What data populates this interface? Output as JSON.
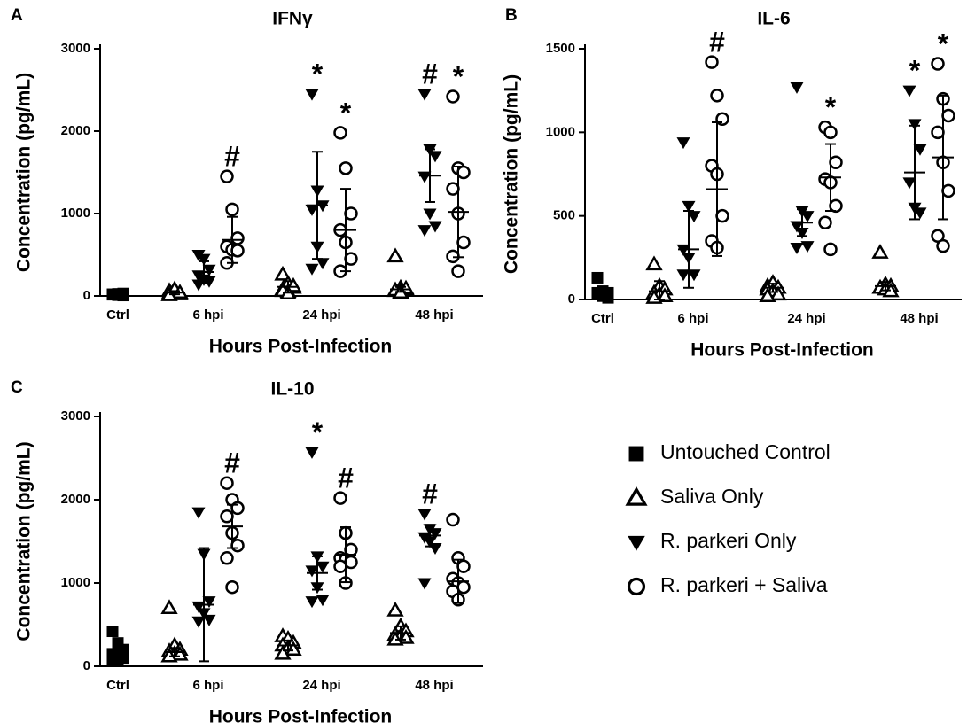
{
  "chart_data": [
    {
      "type": "scatter",
      "panel": "A",
      "title": "IFNγ",
      "categories": [
        "Ctrl",
        "6 hpi",
        "24 hpi",
        "48 hpi"
      ],
      "xlabel": "Hours Post-Infection",
      "ylabel": "Concentration (pg/mL)",
      "ylim": [
        0,
        3000
      ],
      "yticks": [
        0,
        1000,
        2000,
        3000
      ],
      "series": [
        {
          "marker": "square",
          "color": "#000000",
          "values": [
            [
              20,
              10,
              30,
              15,
              25,
              5,
              20,
              10
            ],
            null,
            null,
            null
          ],
          "mean": [
            20,
            null,
            null,
            null
          ],
          "sd": [
            10,
            null,
            null,
            null
          ],
          "annotations": [
            null,
            null,
            null,
            null
          ]
        },
        {
          "marker": "triangle-open",
          "color": "#000000",
          "values": [
            null,
            [
              30,
              50,
              20,
              60,
              80,
              40,
              10
            ],
            [
              260,
              150,
              100,
              80,
              50,
              120,
              60,
              30
            ],
            [
              480,
              100,
              80,
              60,
              50,
              90,
              70,
              40
            ]
          ],
          "mean": [
            null,
            40,
            110,
            80
          ],
          "sd": [
            null,
            20,
            70,
            30
          ],
          "annotations": [
            null,
            null,
            null,
            null
          ]
        },
        {
          "marker": "triangle-down",
          "color": "#000000",
          "values": [
            null,
            [
              500,
              450,
              320,
              250,
              200,
              180,
              140
            ],
            [
              2450,
              1280,
              1100,
              1050,
              600,
              400,
              330
            ],
            [
              2450,
              1780,
              1700,
              1450,
              1000,
              850,
              800
            ]
          ],
          "mean": [
            null,
            290,
            1100,
            1460
          ],
          "sd": [
            null,
            130,
            650,
            320
          ],
          "annotations": [
            null,
            null,
            "*",
            "#"
          ]
        },
        {
          "marker": "circle-open",
          "color": "#000000",
          "values": [
            null,
            [
              1450,
              1050,
              700,
              600,
              560,
              550,
              400
            ],
            [
              1980,
              1550,
              1000,
              800,
              650,
              450,
              300
            ],
            [
              2420,
              1550,
              1500,
              1300,
              1000,
              650,
              480,
              300
            ]
          ],
          "mean": [
            null,
            680,
            800,
            1020
          ],
          "sd": [
            null,
            280,
            500,
            550
          ],
          "annotations": [
            null,
            "#",
            "*",
            "*"
          ]
        }
      ]
    },
    {
      "type": "scatter",
      "panel": "B",
      "title": "IL-6",
      "categories": [
        "Ctrl",
        "6 hpi",
        "24 hpi",
        "48 hpi"
      ],
      "xlabel": "Hours Post-Infection",
      "ylabel": "Concentration (pg/mL)",
      "ylim": [
        0,
        1500
      ],
      "yticks": [
        0,
        500,
        1000,
        1500
      ],
      "series": [
        {
          "marker": "square",
          "color": "#000000",
          "values": [
            [
              130,
              50,
              40,
              30,
              20,
              10,
              40,
              30
            ],
            null,
            null,
            null
          ],
          "mean": [
            40,
            null,
            null,
            null
          ],
          "sd": [
            35,
            null,
            null,
            null
          ],
          "annotations": [
            null,
            null,
            null,
            null
          ]
        },
        {
          "marker": "triangle-open",
          "color": "#000000",
          "values": [
            null,
            [
              210,
              80,
              60,
              40,
              30,
              20,
              10
            ],
            [
              80,
              100,
              70,
              60,
              50,
              30,
              20
            ],
            [
              280,
              90,
              80,
              70,
              60,
              50
            ]
          ],
          "mean": [
            null,
            50,
            70,
            80
          ],
          "sd": [
            null,
            60,
            25,
            25
          ],
          "annotations": [
            null,
            null,
            null,
            null
          ]
        },
        {
          "marker": "triangle-down",
          "color": "#000000",
          "values": [
            null,
            [
              940,
              560,
              500,
              300,
              250,
              150,
              150
            ],
            [
              1270,
              530,
              500,
              440,
              400,
              320,
              310
            ],
            [
              1250,
              1050,
              900,
              700,
              550,
              520
            ]
          ],
          "mean": [
            null,
            300,
            460,
            760
          ],
          "sd": [
            null,
            230,
            80,
            280
          ],
          "annotations": [
            null,
            null,
            null,
            "*"
          ]
        },
        {
          "marker": "circle-open",
          "color": "#000000",
          "values": [
            null,
            [
              1420,
              1220,
              1080,
              800,
              750,
              500,
              350,
              310
            ],
            [
              1030,
              1000,
              820,
              720,
              700,
              560,
              460,
              300
            ],
            [
              1410,
              1200,
              1100,
              1000,
              820,
              650,
              380,
              320
            ]
          ],
          "mean": [
            null,
            660,
            730,
            850
          ],
          "sd": [
            null,
            400,
            200,
            370
          ],
          "annotations": [
            null,
            "#",
            "*",
            "*"
          ]
        }
      ]
    },
    {
      "type": "scatter",
      "panel": "C",
      "title": "IL-10",
      "categories": [
        "Ctrl",
        "6 hpi",
        "24 hpi",
        "48 hpi"
      ],
      "xlabel": "Hours Post-Infection",
      "ylabel": "Concentration (pg/mL)",
      "ylim": [
        0,
        3000
      ],
      "yticks": [
        0,
        1000,
        2000,
        3000
      ],
      "series": [
        {
          "name": "Untouched Control",
          "marker": "square",
          "color": "#000000",
          "values": [
            [
              420,
              280,
              200,
              150,
              120,
              100,
              80,
              60
            ],
            null,
            null,
            null
          ],
          "mean": [
            160,
            null,
            null,
            null
          ],
          "sd": [
            90,
            null,
            null,
            null
          ],
          "annotations": [
            null,
            null,
            null,
            null
          ]
        },
        {
          "name": "Saliva Only",
          "marker": "triangle-open",
          "color": "#000000",
          "values": [
            null,
            [
              700,
              250,
              200,
              180,
              150,
              140,
              120
            ],
            [
              360,
              330,
              280,
              250,
              220,
              200,
              150
            ],
            [
              670,
              480,
              420,
              380,
              360,
              340,
              320
            ]
          ],
          "mean": [
            null,
            170,
            250,
            400
          ],
          "sd": [
            null,
            50,
            60,
            80
          ],
          "annotations": [
            null,
            null,
            null,
            null
          ]
        },
        {
          "name": "R. parkeri Only",
          "marker": "triangle-down",
          "color": "#000000",
          "values": [
            null,
            [
              1850,
              1350,
              780,
              720,
              640,
              560,
              540
            ],
            [
              2570,
              1320,
              1200,
              1150,
              950,
              800,
              780
            ],
            [
              1830,
              1650,
              1600,
              1550,
              1500,
              1420,
              1000
            ]
          ],
          "mean": [
            null,
            740,
            1120,
            1570
          ],
          "sd": [
            null,
            680,
            200,
            130
          ],
          "annotations": [
            null,
            null,
            "*",
            "#"
          ]
        },
        {
          "name": "R. parkeri + Saliva",
          "marker": "circle-open",
          "color": "#000000",
          "values": [
            null,
            [
              2200,
              2000,
              1900,
              1800,
              1600,
              1450,
              1300,
              950
            ],
            [
              2020,
              1600,
              1400,
              1300,
              1280,
              1250,
              1200,
              1000
            ],
            [
              1760,
              1300,
              1200,
              1050,
              1000,
              950,
              900,
              800
            ]
          ],
          "mean": [
            null,
            1680,
            1340,
            1020
          ],
          "sd": [
            null,
            260,
            330,
            260
          ],
          "annotations": [
            null,
            "#",
            "#",
            null
          ]
        }
      ]
    }
  ]
}
